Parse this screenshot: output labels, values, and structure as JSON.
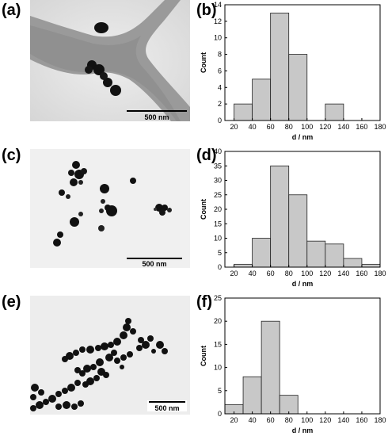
{
  "figure": {
    "panels": {
      "a": {
        "label": "(a)",
        "scalebar": "500 nm"
      },
      "b": {
        "label": "(b)"
      },
      "c": {
        "label": "(c)",
        "scalebar": "500 nm"
      },
      "d": {
        "label": "(d)"
      },
      "e": {
        "label": "(e)",
        "scalebar": "500 nm"
      },
      "f": {
        "label": "(f)"
      }
    }
  },
  "chart_data": [
    {
      "type": "bar",
      "panel": "b",
      "xlabel": "d / nm",
      "ylabel": "Count",
      "xlim": [
        10,
        180
      ],
      "ylim": [
        0,
        14
      ],
      "xticks": [
        20,
        40,
        60,
        80,
        100,
        120,
        140,
        160,
        180
      ],
      "yticks": [
        0,
        2,
        4,
        6,
        8,
        10,
        12,
        14
      ],
      "bins": [
        {
          "x0": 20,
          "x1": 40,
          "value": 2
        },
        {
          "x0": 40,
          "x1": 60,
          "value": 5
        },
        {
          "x0": 60,
          "x1": 80,
          "value": 13
        },
        {
          "x0": 80,
          "x1": 100,
          "value": 8
        },
        {
          "x0": 100,
          "x1": 120,
          "value": 0
        },
        {
          "x0": 120,
          "x1": 140,
          "value": 2
        },
        {
          "x0": 140,
          "x1": 160,
          "value": 0
        },
        {
          "x0": 160,
          "x1": 180,
          "value": 0
        }
      ],
      "bar_color": "#c8c8c8"
    },
    {
      "type": "bar",
      "panel": "d",
      "xlabel": "d / nm",
      "ylabel": "Count",
      "xlim": [
        10,
        180
      ],
      "ylim": [
        0,
        40
      ],
      "xticks": [
        20,
        40,
        60,
        80,
        100,
        120,
        140,
        160,
        180
      ],
      "yticks": [
        0,
        5,
        10,
        15,
        20,
        25,
        30,
        35,
        40
      ],
      "bins": [
        {
          "x0": 20,
          "x1": 40,
          "value": 1
        },
        {
          "x0": 40,
          "x1": 60,
          "value": 10
        },
        {
          "x0": 60,
          "x1": 80,
          "value": 35
        },
        {
          "x0": 80,
          "x1": 100,
          "value": 25
        },
        {
          "x0": 100,
          "x1": 120,
          "value": 9
        },
        {
          "x0": 120,
          "x1": 140,
          "value": 8
        },
        {
          "x0": 140,
          "x1": 160,
          "value": 3
        },
        {
          "x0": 160,
          "x1": 180,
          "value": 1
        }
      ],
      "bar_color": "#c8c8c8"
    },
    {
      "type": "bar",
      "panel": "f",
      "xlabel": "d / nm",
      "ylabel": "Count",
      "xlim": [
        10,
        180
      ],
      "ylim": [
        0,
        25
      ],
      "xticks": [
        20,
        40,
        60,
        80,
        100,
        120,
        140,
        160,
        180
      ],
      "yticks": [
        0,
        5,
        10,
        15,
        20,
        25
      ],
      "bins": [
        {
          "x0": 10,
          "x1": 30,
          "value": 2
        },
        {
          "x0": 30,
          "x1": 50,
          "value": 8
        },
        {
          "x0": 50,
          "x1": 70,
          "value": 20
        },
        {
          "x0": 70,
          "x1": 90,
          "value": 4
        },
        {
          "x0": 90,
          "x1": 110,
          "value": 0
        },
        {
          "x0": 110,
          "x1": 130,
          "value": 0
        },
        {
          "x0": 130,
          "x1": 150,
          "value": 0
        },
        {
          "x0": 150,
          "x1": 170,
          "value": 0
        },
        {
          "x0": 170,
          "x1": 180,
          "value": 0
        }
      ],
      "bar_color": "#c8c8c8"
    }
  ]
}
